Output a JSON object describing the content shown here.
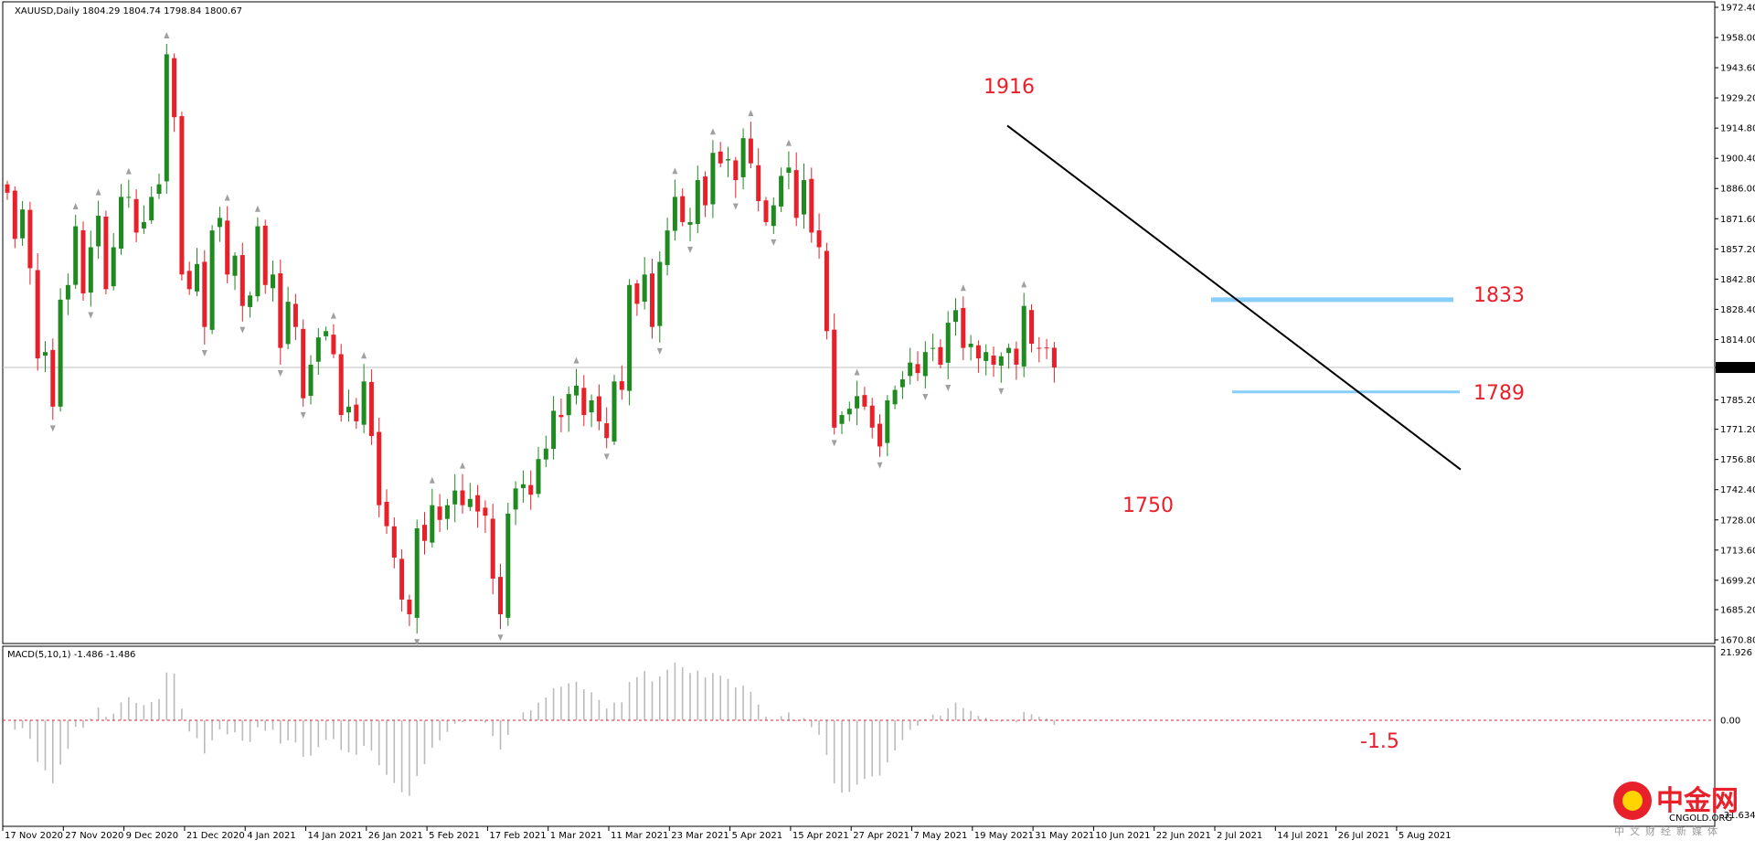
{
  "header": {
    "symbol_label": "XAUUSD,Daily",
    "ohlc_label": "1804.29 1804.74 1798.84 1800.67",
    "macd_label": "MACD(5,10,1) -1.486 -1.486"
  },
  "colors": {
    "bull": "#1f8a1f",
    "bear": "#e8202a",
    "trendline": "#000000",
    "level": "#87cefa",
    "annotation": "#e8202a",
    "macd_hist": "#bbbbbb",
    "macd_zero": "#e8202a"
  },
  "watermark": {
    "brand": "中金网",
    "domain": "CNGOLD.ORG",
    "subtitle": "中文财经新媒体",
    "icon": "cngold-logo-icon"
  },
  "chart_data": [
    {
      "type": "candlestick",
      "title": "XAUUSD,Daily",
      "ylim": [
        1665,
        1980
      ],
      "current_price": 1800.67,
      "y_ticks": [
        1972.4,
        1958.0,
        1943.6,
        1929.2,
        1914.8,
        1900.4,
        1886.0,
        1871.6,
        1857.2,
        1842.8,
        1828.4,
        1814.0,
        1800.67,
        1785.2,
        1771.2,
        1756.8,
        1742.4,
        1728.0,
        1713.6,
        1699.2,
        1685.2,
        1670.8
      ],
      "y_tick_labels": [
        "1972.40",
        "1958.00",
        "1943.60",
        "1929.20",
        "1914.80",
        "1900.40",
        "1886.00",
        "1871.60",
        "1857.20",
        "1842.80",
        "1828.40",
        "1814.00",
        "1800.67",
        "1785.20",
        "1771.20",
        "1756.80",
        "1742.40",
        "1728.00",
        "1713.60",
        "1699.20",
        "1685.20",
        "1670.80"
      ],
      "x_labels": [
        "17 Nov 2020",
        "27 Nov 2020",
        "9 Dec 2020",
        "21 Dec 2020",
        "4 Jan 2021",
        "14 Jan 2021",
        "26 Jan 2021",
        "5 Feb 2021",
        "17 Feb 2021",
        "1 Mar 2021",
        "11 Mar 2021",
        "23 Mar 2021",
        "5 Apr 2021",
        "15 Apr 2021",
        "27 Apr 2021",
        "7 May 2021",
        "19 May 2021",
        "31 May 2021",
        "10 Jun 2021",
        "22 Jun 2021",
        "2 Jul 2021",
        "14 Jul 2021",
        "26 Jul 2021",
        "5 Aug 2021"
      ],
      "close_path": [
        1884,
        1862,
        1876,
        1848,
        1805,
        1808,
        1782,
        1833,
        1840,
        1868,
        1836,
        1858,
        1873,
        1838,
        1858,
        1882,
        1882,
        1865,
        1870,
        1882,
        1888,
        1950,
        1920,
        1845,
        1838,
        1850,
        1820,
        1866,
        1872,
        1845,
        1854,
        1830,
        1835,
        1868,
        1840,
        1845,
        1810,
        1832,
        1820,
        1786,
        1802,
        1815,
        1818,
        1807,
        1778,
        1782,
        1775,
        1794,
        1768,
        1735,
        1725,
        1710,
        1690,
        1683,
        1724,
        1718,
        1735,
        1728,
        1735,
        1742,
        1735,
        1738,
        1732,
        1730,
        1700,
        1683,
        1731,
        1743,
        1745,
        1740,
        1757,
        1762,
        1780,
        1777,
        1788,
        1792,
        1778,
        1785,
        1775,
        1767,
        1794,
        1790,
        1840,
        1831,
        1845,
        1820,
        1851,
        1866,
        1882,
        1870,
        1870,
        1890,
        1878,
        1903,
        1898,
        1900,
        1890,
        1910,
        1898,
        1880,
        1870,
        1878,
        1892,
        1896,
        1872,
        1890,
        1865,
        1858,
        1818,
        1772,
        1778,
        1781,
        1787,
        1782,
        1772,
        1763,
        1785,
        1790,
        1795,
        1803,
        1798,
        1808,
        1810,
        1802,
        1822,
        1828,
        1810,
        1812,
        1805,
        1808,
        1802,
        1806,
        1810,
        1802,
        1830,
        1812,
        1810,
        1810,
        1800.67
      ],
      "annotations": [
        {
          "text": "1916",
          "value": 1916
        },
        {
          "text": "1833",
          "value": 1833
        },
        {
          "text": "1789",
          "value": 1789
        },
        {
          "text": "1750",
          "value": 1750
        }
      ],
      "levels": [
        {
          "name": "resistance",
          "value": 1833
        },
        {
          "name": "support",
          "value": 1789
        }
      ],
      "trendline": {
        "start_value": 1916,
        "end_value": 1752
      }
    },
    {
      "type": "bar",
      "title": "MACD(5,10,1) -1.486 -1.486",
      "ylim": [
        -31.634,
        21.926
      ],
      "y_tick_labels": [
        "21.926",
        "0.00",
        "-31.634"
      ],
      "zero_line": 0,
      "current_value": -1.486,
      "annotation": {
        "text": "-1.5",
        "value": -1.5
      }
    }
  ]
}
